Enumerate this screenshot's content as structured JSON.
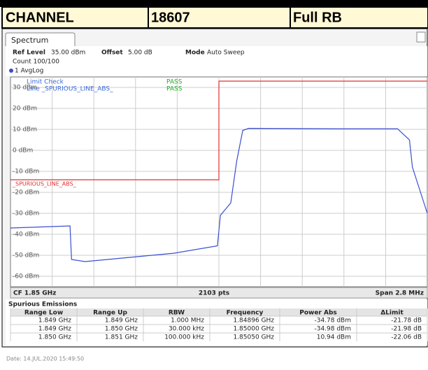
{
  "header": {
    "cells": [
      "CHANNEL",
      "18607",
      "Full RB"
    ]
  },
  "window": {
    "tab": "Spectrum",
    "ref_level_label": "Ref Level",
    "ref_level": "35.00 dBm",
    "offset_label": "Offset",
    "offset": "5.00 dB",
    "mode_label": "Mode",
    "mode": "Auto Sweep",
    "count": "Count 100/100"
  },
  "chart_data": {
    "type": "line",
    "xlim": [
      1.8486,
      1.8514
    ],
    "ylim": [
      -65,
      35
    ],
    "yticks": [
      {
        "value": 30,
        "label": "30 dBm"
      },
      {
        "value": 20,
        "label": "20 dBm"
      },
      {
        "value": 10,
        "label": "10 dBm"
      },
      {
        "value": 0,
        "label": "0 dBm"
      },
      {
        "value": -10,
        "label": "-10 dBm"
      },
      {
        "value": -20,
        "label": "-20 dBm"
      },
      {
        "value": -30,
        "label": "-30 dBm"
      },
      {
        "value": -40,
        "label": "-40 dBm"
      },
      {
        "value": -50,
        "label": "-50 dBm"
      },
      {
        "value": -60,
        "label": "-60 dBm"
      }
    ],
    "grid": true,
    "series": [
      {
        "name": "1 AvgLog",
        "color": "#3a4fd0",
        "x": [
          1.8486,
          1.8488,
          1.849,
          1.84901,
          1.8491,
          1.8494,
          1.8497,
          1.84999,
          1.85001,
          1.85008,
          1.85012,
          1.85016,
          1.8502,
          1.8508,
          1.8512,
          1.85128,
          1.8513,
          1.8514
        ],
        "values": [
          -37,
          -36.5,
          -36,
          -52,
          -53,
          -51,
          -49,
          -45.5,
          -31,
          -25,
          -5,
          9.5,
          10.5,
          10.3,
          10.3,
          5,
          -8,
          -30
        ]
      },
      {
        "name": "_SPURIOUS_LINE_ABS_",
        "color": "#e03030",
        "x": [
          1.8486,
          1.85,
          1.85,
          1.8514
        ],
        "values": [
          -14,
          -14,
          33,
          33
        ]
      }
    ],
    "annotations": [
      "Limit Check",
      "PASS",
      "Line _SPURIOUS_LINE_ABS_",
      "PASS"
    ],
    "footer": {
      "center": "CF 1.85 GHz",
      "points": "2103 pts",
      "span": "Span 2.8 MHz"
    }
  },
  "table": {
    "title": "Spurious Emissions",
    "columns": [
      "Range Low",
      "Range Up",
      "RBW",
      "Frequency",
      "Power Abs",
      "ΔLimit"
    ],
    "rows": [
      [
        "1.849 GHz",
        "1.849 GHz",
        "1.000 MHz",
        "1.84896 GHz",
        "-34.78 dBm",
        "-21.78 dB"
      ],
      [
        "1.849 GHz",
        "1.850 GHz",
        "30.000 kHz",
        "1.85000 GHz",
        "-34.98 dBm",
        "-21.98 dB"
      ],
      [
        "1.850 GHz",
        "1.851 GHz",
        "100.000 kHz",
        "1.85050 GHz",
        "10.94 dBm",
        "-22.06 dB"
      ]
    ]
  },
  "date": "Date: 14.JUL.2020 15:49:50"
}
